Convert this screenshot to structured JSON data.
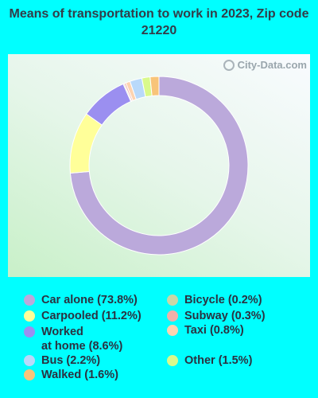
{
  "chart_data": {
    "type": "pie",
    "title": "Means of transportation to work in 2023, Zip code 21220",
    "watermark": "City-Data.com",
    "slices": [
      {
        "label": "Car alone",
        "value": 73.8,
        "color": "#BBA9DB",
        "legend": "Car alone (73.8%)"
      },
      {
        "label": "Carpooled",
        "value": 11.2,
        "color": "#FFFF99",
        "legend": "Carpooled (11.2%)"
      },
      {
        "label": "Worked at home",
        "value": 8.6,
        "color": "#9B8FF0",
        "legend": "Worked\nat home (8.6%)"
      },
      {
        "label": "Bicycle",
        "value": 0.2,
        "color": "#C9D6A6",
        "legend": "Bicycle (0.2%)"
      },
      {
        "label": "Subway",
        "value": 0.3,
        "color": "#F0B0A9",
        "legend": "Subway (0.3%)"
      },
      {
        "label": "Taxi",
        "value": 0.8,
        "color": "#FDD3B0",
        "legend": "Taxi (0.8%)"
      },
      {
        "label": "Bus",
        "value": 2.2,
        "color": "#B9D9FA",
        "legend": "Bus (2.2%)"
      },
      {
        "label": "Other",
        "value": 1.5,
        "color": "#D9F98C",
        "legend": "Other (1.5%)"
      },
      {
        "label": "Walked",
        "value": 1.6,
        "color": "#F8C479",
        "legend": "Walked (1.6%)"
      }
    ]
  }
}
